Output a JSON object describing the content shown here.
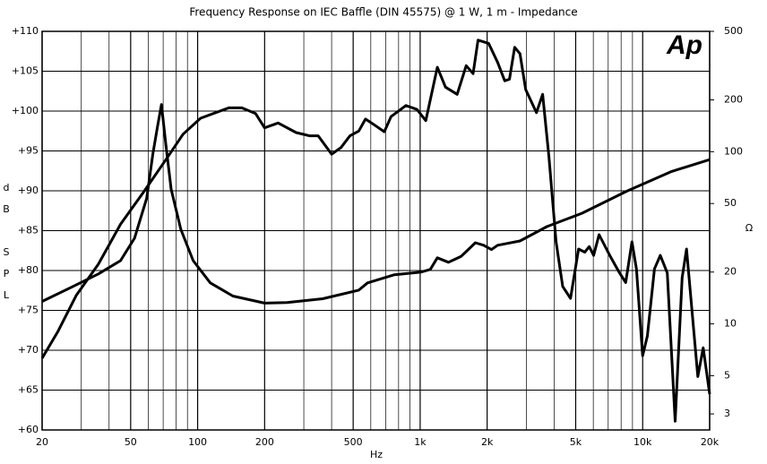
{
  "chart_data": {
    "type": "line",
    "title": "Frequency Response on IEC Baffle (DIN 45575) @ 1 W, 1 m - Impedance",
    "xlabel": "Hz",
    "ylabel": "dB SPL",
    "y2label": "Ω",
    "logo": "Ap",
    "xlog": true,
    "y2log": true,
    "grid": true,
    "xlim": [
      20,
      20000
    ],
    "xticks": [
      20,
      50,
      100,
      200,
      500,
      {
        "value": 1000,
        "label": "1k"
      },
      {
        "value": 2000,
        "label": "2k"
      },
      {
        "value": 5000,
        "label": "5k"
      },
      {
        "value": 10000,
        "label": "10k"
      },
      {
        "value": 20000,
        "label": "20k"
      }
    ],
    "xminor": [
      30,
      40,
      60,
      70,
      80,
      90,
      300,
      400,
      600,
      700,
      800,
      900,
      3000,
      4000,
      6000,
      7000,
      8000,
      9000
    ],
    "ylim": [
      60,
      110
    ],
    "yticks": [
      {
        "value": 60,
        "label": "+60"
      },
      {
        "value": 65,
        "label": "+65"
      },
      {
        "value": 70,
        "label": "+70"
      },
      {
        "value": 75,
        "label": "+75"
      },
      {
        "value": 80,
        "label": "+80"
      },
      {
        "value": 85,
        "label": "+85"
      },
      {
        "value": 90,
        "label": "+90"
      },
      {
        "value": 95,
        "label": "+95"
      },
      {
        "value": 100,
        "label": "+100"
      },
      {
        "value": 105,
        "label": "+105"
      },
      {
        "value": 110,
        "label": "+110"
      }
    ],
    "y2lim": [
      2.42,
      500
    ],
    "y2ticks": [
      3,
      5,
      10,
      20,
      50,
      100,
      200,
      500
    ],
    "series": [
      {
        "color": "#000000",
        "x": [
          20,
          23.6,
          28.5,
          35.8,
          45,
          57,
          72,
          86,
          103,
          138,
          158,
          182,
          200,
          230,
          277,
          318,
          348,
          400,
          440,
          484,
          530,
          568,
          612,
          690,
          740,
          863,
          968,
          1060,
          1195,
          1300,
          1467,
          1610,
          1730,
          1820,
          2030,
          2230,
          2400,
          2520,
          2660,
          2810,
          2980,
          3330,
          3550,
          3790,
          4080,
          4370,
          4740,
          5150,
          5490,
          5750,
          6020,
          6370,
          7110,
          7800,
          8390,
          8950,
          9380,
          10000,
          10500,
          11300,
          12000,
          12900,
          14000,
          15050,
          15750,
          17700,
          18700,
          20000
        ],
        "values": [
          69,
          72.4,
          76.9,
          80.8,
          85.8,
          89.8,
          93.9,
          97.1,
          99.1,
          100.4,
          100.4,
          99.7,
          97.9,
          98.5,
          97.3,
          96.9,
          96.9,
          94.6,
          95.4,
          96.9,
          97.5,
          99.0,
          98.4,
          97.4,
          99.3,
          100.7,
          100.2,
          98.8,
          105.5,
          103.0,
          102.1,
          105.7,
          104.7,
          108.9,
          108.5,
          106.1,
          103.8,
          104.0,
          108.0,
          107.2,
          102.7,
          99.8,
          102.1,
          94.3,
          83.6,
          78.0,
          76.5,
          82.7,
          82.3,
          83.0,
          81.9,
          84.5,
          81.9,
          79.9,
          78.5,
          83.6,
          80.2,
          69.3,
          71.8,
          80.2,
          81.9,
          79.7,
          61.1,
          79.1,
          82.7,
          66.7,
          70.3,
          64.5
        ]
      },
      {
        "color": "#000000",
        "axis": "y2",
        "x": [
          20,
          27,
          35.8,
          45,
          52,
          59,
          63,
          66,
          68.8,
          72,
          76,
          84,
          95.5,
          114,
          144,
          200,
          252,
          365,
          530,
          580,
          766,
          1010,
          1110,
          1195,
          1340,
          1530,
          1770,
          1930,
          2090,
          2230,
          2810,
          3710,
          5330,
          8490,
          13500,
          20000
        ],
        "values": [
          13.5,
          16.3,
          19.5,
          23.3,
          31.4,
          53.6,
          97.8,
          140,
          188,
          110,
          60.6,
          35.4,
          23.3,
          17.3,
          14.5,
          13.2,
          13.3,
          14.0,
          15.7,
          17.3,
          19.3,
          20.0,
          20.7,
          24.2,
          22.8,
          24.7,
          29.6,
          28.6,
          27.0,
          28.6,
          30.3,
          36.7,
          43.9,
          59.0,
          76.8,
          89.9
        ]
      }
    ]
  }
}
